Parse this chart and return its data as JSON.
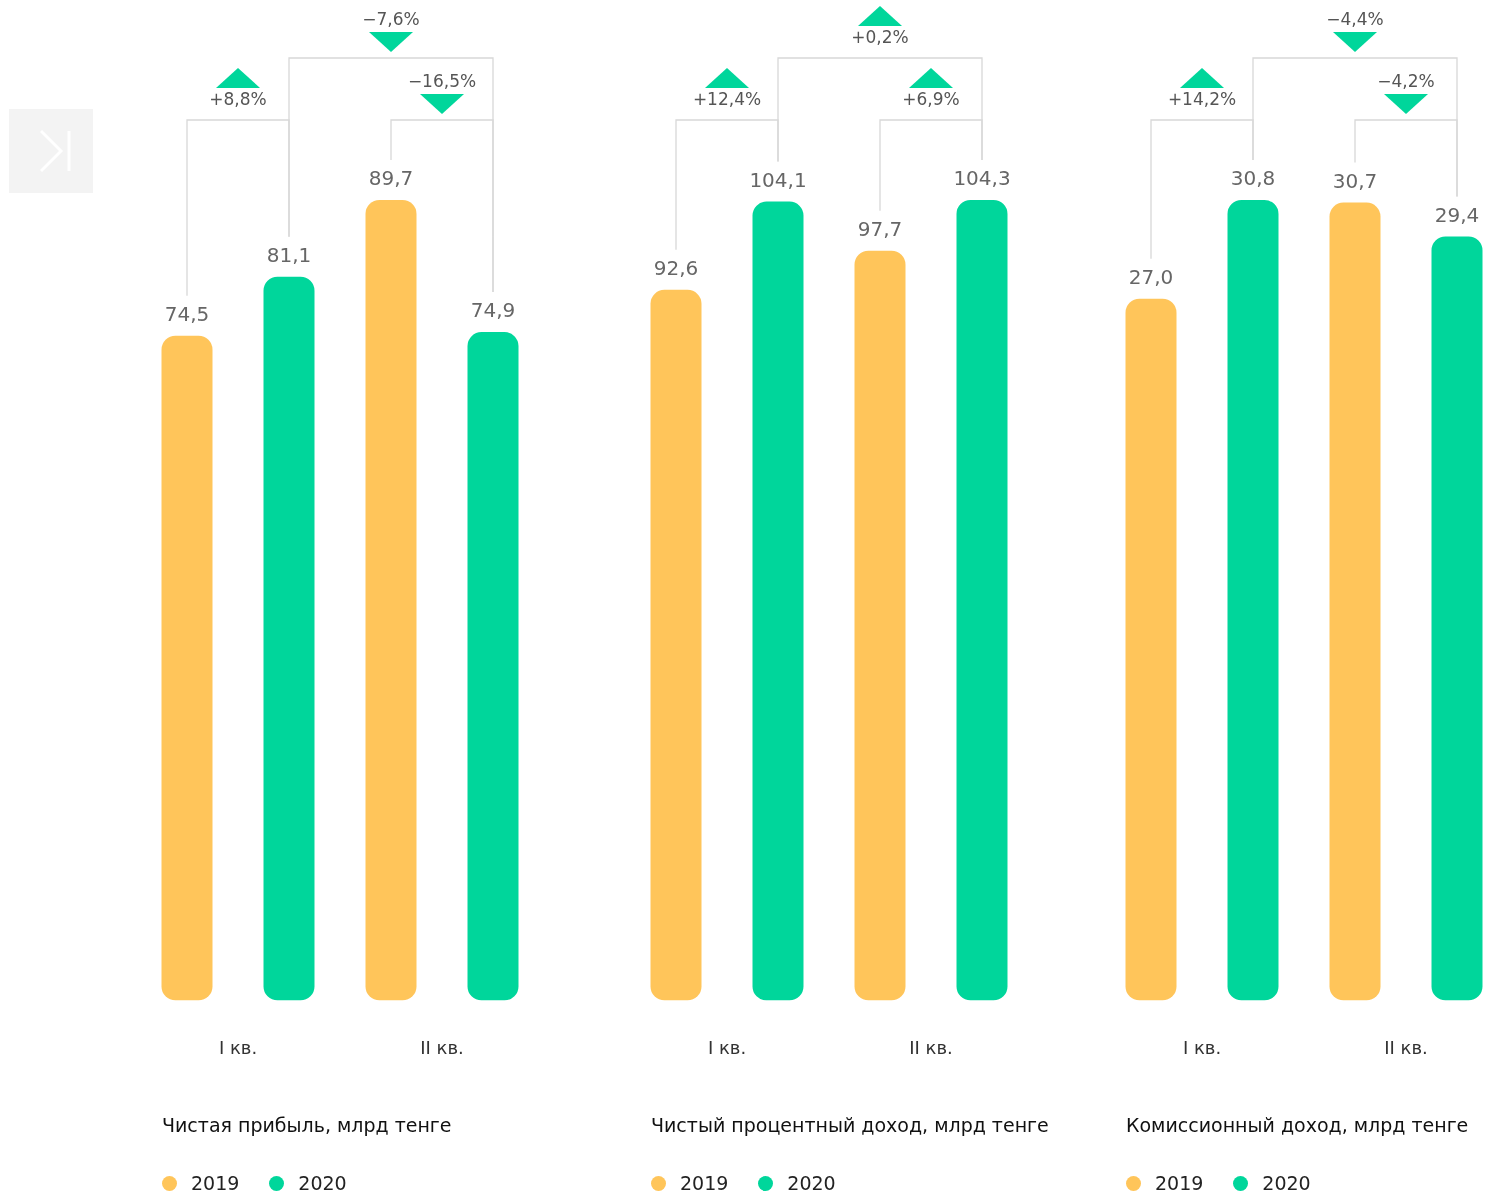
{
  "chart_data": [
    {
      "type": "bar",
      "title": "Чистая прибыль, млрд тенге",
      "categories": [
        "I кв.",
        "II кв."
      ],
      "tick_labels": "x",
      "legend": "bottom",
      "series": [
        {
          "name": "2019",
          "color": "#ffc55a",
          "values": [
            74.5,
            89.7
          ],
          "value_labels": [
            "74,5",
            "89,7"
          ]
        },
        {
          "name": "2020",
          "color": "#00d69b",
          "values": [
            81.1,
            74.9
          ],
          "value_labels": [
            "81,1",
            "74,9"
          ]
        }
      ],
      "annotations": [
        "+8,8%",
        "−16,5%",
        "−7,6%"
      ]
    },
    {
      "type": "bar",
      "title": "Чистый процентный доход, млрд тенге",
      "categories": [
        "I кв.",
        "II кв."
      ],
      "tick_labels": "x",
      "legend": "bottom",
      "series": [
        {
          "name": "2019",
          "color": "#ffc55a",
          "values": [
            92.6,
            97.7
          ],
          "value_labels": [
            "92,6",
            "97,7"
          ]
        },
        {
          "name": "2020",
          "color": "#00d69b",
          "values": [
            104.1,
            104.3
          ],
          "value_labels": [
            "104,1",
            "104,3"
          ]
        }
      ],
      "annotations": [
        "+12,4%",
        "+6,9%",
        "+0,2%"
      ]
    },
    {
      "type": "bar",
      "title": "Комиссионный доход, млрд тенге",
      "categories": [
        "I кв.",
        "II кв."
      ],
      "tick_labels": "x",
      "legend": "bottom",
      "series": [
        {
          "name": "2019",
          "color": "#ffc55a",
          "values": [
            27.0,
            30.7
          ],
          "value_labels": [
            "27,0",
            "30,7"
          ]
        },
        {
          "name": "2020",
          "color": "#00d69b",
          "values": [
            30.8,
            29.4
          ],
          "value_labels": [
            "30,8",
            "29,4"
          ]
        }
      ],
      "annotations": [
        "+14,2%",
        "−4,2%",
        "−4,4%"
      ]
    }
  ]
}
